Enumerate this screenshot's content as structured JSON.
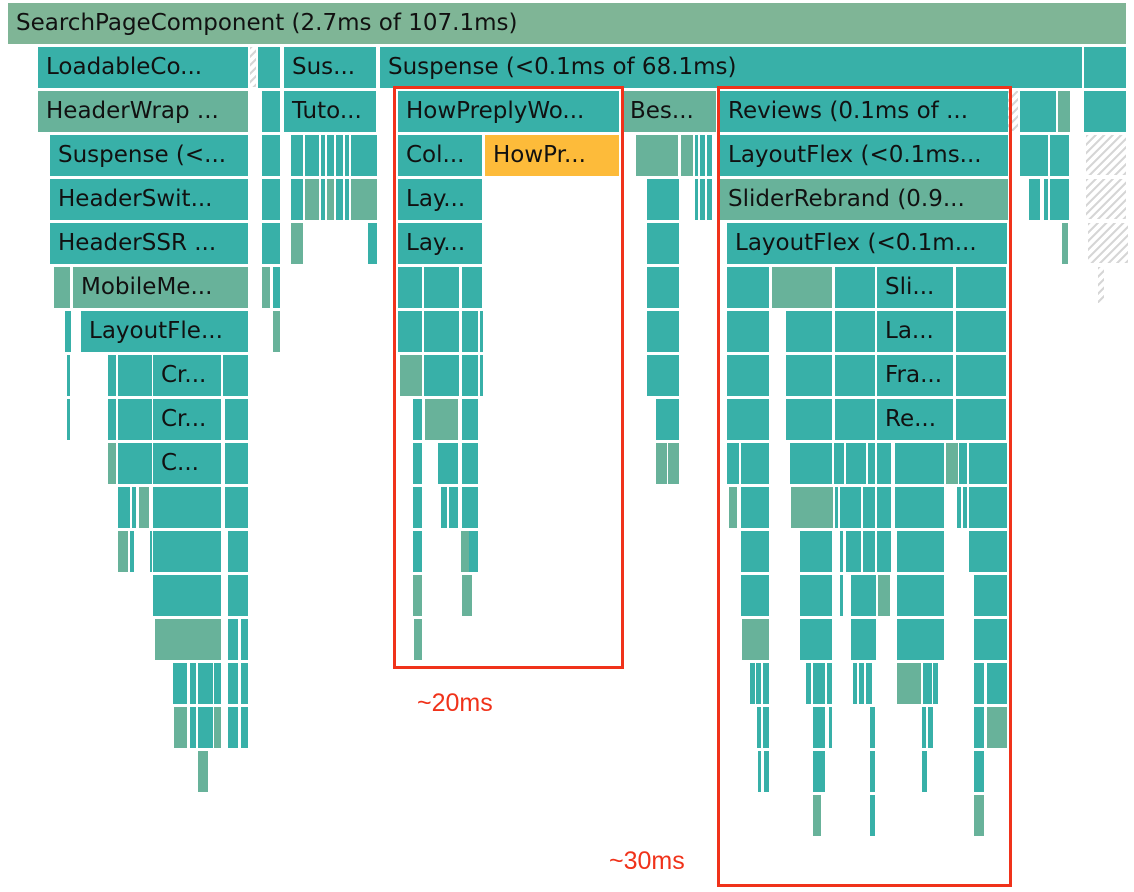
{
  "colors": {
    "teal": "#38b0a8",
    "sage": "#68b29a",
    "root": "#7fb596",
    "highlight": "#fdbb3a",
    "annotation": "#f0321a"
  },
  "labels": {
    "root": "SearchPageComponent (2.7ms of 107.1ms)",
    "loadable": "LoadableCo...",
    "sus_small": "Sus...",
    "suspense_main": "Suspense (<0.1ms of 68.1ms)",
    "header_wrap": "HeaderWrap ...",
    "tuto": "Tuto...",
    "how_preply": "HowPreplyWo...",
    "bes": "Bes...",
    "reviews": "Reviews (0.1ms of ...",
    "suspense_hdr": "Suspense (<...",
    "col": "Col...",
    "how_pr": "HowPr...",
    "layout_flex_r1": "LayoutFlex (<0.1ms...",
    "header_swit": "HeaderSwit...",
    "lay1": "Lay...",
    "slider_rebrand": "SliderRebrand (0.9...",
    "header_ssr": "HeaderSSR ...",
    "lay2": "Lay...",
    "layout_flex_r2": "LayoutFlex (<0.1m...",
    "mobile_me": "MobileMe...",
    "sli": "Sli...",
    "layout_fle": "LayoutFle...",
    "la": "La...",
    "cr1": "Cr...",
    "fra": "Fra...",
    "cr2": "Cr...",
    "re": "Re...",
    "c3": "C..."
  },
  "annotations": {
    "left_box_label": "~20ms",
    "right_box_label": "~30ms"
  }
}
